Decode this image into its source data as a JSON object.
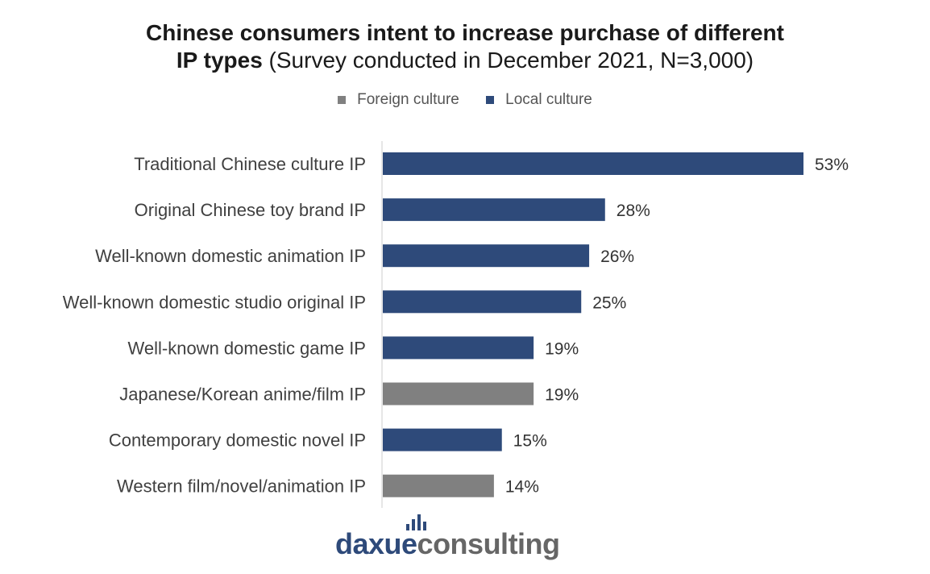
{
  "title": {
    "bold_part": "Chinese consumers intent to increase purchase of different IP types",
    "line1": "Chinese consumers intent to increase purchase of different",
    "line2_bold": "IP types",
    "line2_rest": " (Survey conducted in December 2021, N=3,000)"
  },
  "legend": [
    {
      "label": "Foreign culture",
      "color": "#808080"
    },
    {
      "label": "Local culture",
      "color": "#2e4a7a"
    }
  ],
  "chart_data": {
    "type": "bar",
    "orientation": "horizontal",
    "title": "Chinese consumers intent to increase purchase of different IP types (Survey conducted in December 2021, N=3,000)",
    "categories": [
      "Traditional Chinese culture IP",
      "Original Chinese toy brand IP",
      "Well-known domestic animation IP",
      "Well-known domestic studio original IP",
      "Well-known domestic game IP",
      "Japanese/Korean anime/film IP",
      "Contemporary domestic novel IP",
      "Western film/novel/animation IP"
    ],
    "values": [
      53,
      28,
      26,
      25,
      19,
      19,
      15,
      14
    ],
    "labels": [
      "53%",
      "28%",
      "26%",
      "25%",
      "19%",
      "19%",
      "15%",
      "14%"
    ],
    "groups": [
      "Local culture",
      "Local culture",
      "Local culture",
      "Local culture",
      "Local culture",
      "Foreign culture",
      "Local culture",
      "Foreign culture"
    ],
    "colors": {
      "Local culture": "#2e4a7a",
      "Foreign culture": "#808080"
    },
    "xlim": [
      0,
      60
    ],
    "grid": false,
    "legend_position": "top"
  },
  "logo": {
    "part1": "daxue",
    "part2": "consulting"
  }
}
